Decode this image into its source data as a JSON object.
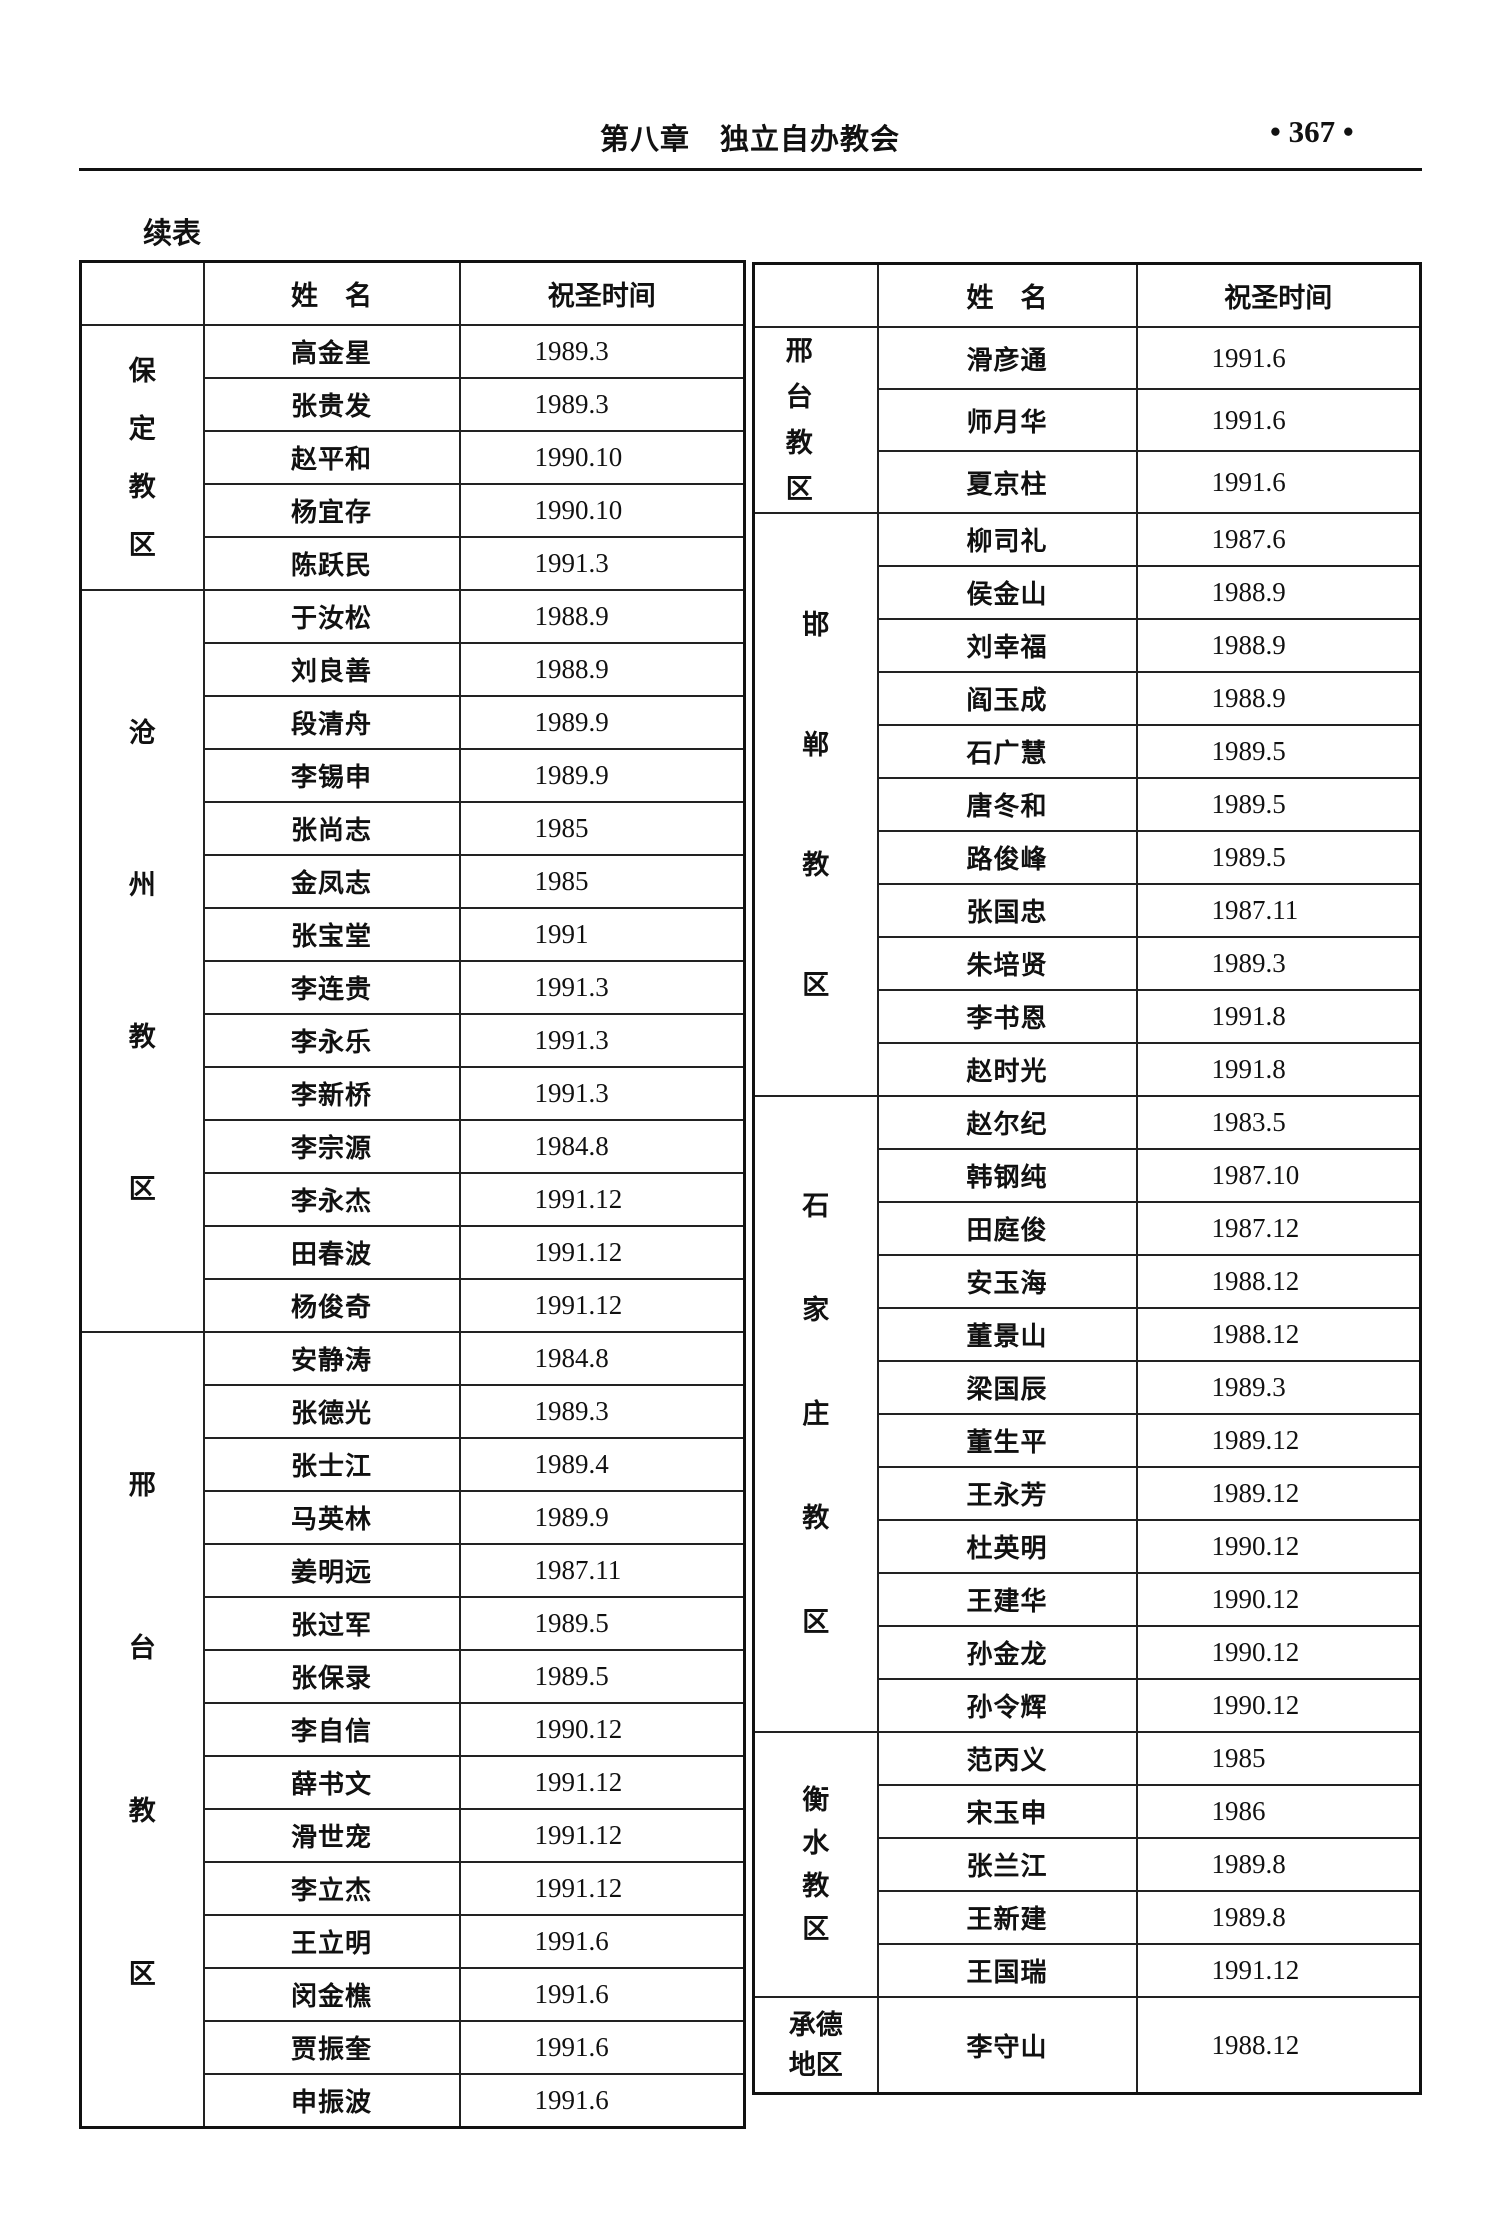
{
  "header": {
    "chapter": "第八章　独立自办教会",
    "page_number": "• 367 •"
  },
  "caption": "续表",
  "columns": {
    "region": "",
    "name": "姓　名",
    "date": "祝圣时间"
  },
  "left_table": [
    {
      "region": "保定教区",
      "layout": "stack",
      "rows": [
        [
          "高金星",
          "1989.3"
        ],
        [
          "张贵发",
          "1989.3"
        ],
        [
          "赵平和",
          "1990.10"
        ],
        [
          "杨宜存",
          "1990.10"
        ],
        [
          "陈跃民",
          "1991.3"
        ]
      ]
    },
    {
      "region": "沧州教区",
      "layout": "stack",
      "rows": [
        [
          "于汝松",
          "1988.9"
        ],
        [
          "刘良善",
          "1988.9"
        ],
        [
          "段清舟",
          "1989.9"
        ],
        [
          "李锡申",
          "1989.9"
        ],
        [
          "张尚志",
          "1985"
        ],
        [
          "金凤志",
          "1985"
        ],
        [
          "张宝堂",
          "1991"
        ],
        [
          "李连贵",
          "1991.3"
        ],
        [
          "李永乐",
          "1991.3"
        ],
        [
          "李新桥",
          "1991.3"
        ],
        [
          "李宗源",
          "1984.8"
        ],
        [
          "李永杰",
          "1991.12"
        ],
        [
          "田春波",
          "1991.12"
        ],
        [
          "杨俊奇",
          "1991.12"
        ]
      ]
    },
    {
      "region": "邢台教区",
      "layout": "stack",
      "rows": [
        [
          "安静涛",
          "1984.8"
        ],
        [
          "张德光",
          "1989.3"
        ],
        [
          "张士江",
          "1989.4"
        ],
        [
          "马英林",
          "1989.9"
        ],
        [
          "姜明远",
          "1987.11"
        ],
        [
          "张过军",
          "1989.5"
        ],
        [
          "张保录",
          "1989.5"
        ],
        [
          "李自信",
          "1990.12"
        ],
        [
          "薛书文",
          "1991.12"
        ],
        [
          "滑世宠",
          "1991.12"
        ],
        [
          "李立杰",
          "1991.12"
        ],
        [
          "王立明",
          "1991.6"
        ],
        [
          "闵金樵",
          "1991.6"
        ],
        [
          "贾振奎",
          "1991.6"
        ],
        [
          "申振波",
          "1991.6"
        ]
      ]
    }
  ],
  "right_table": [
    {
      "region": "邢台教区",
      "layout": "grid",
      "rows": [
        [
          "滑彦通",
          "1991.6"
        ],
        [
          "师月华",
          "1991.6"
        ],
        [
          "夏京柱",
          "1991.6"
        ]
      ]
    },
    {
      "region": "邯郸教区",
      "layout": "stack",
      "rows": [
        [
          "柳司礼",
          "1987.6"
        ],
        [
          "侯金山",
          "1988.9"
        ],
        [
          "刘幸福",
          "1988.9"
        ],
        [
          "阎玉成",
          "1988.9"
        ],
        [
          "石广慧",
          "1989.5"
        ],
        [
          "唐冬和",
          "1989.5"
        ],
        [
          "路俊峰",
          "1989.5"
        ],
        [
          "张国忠",
          "1987.11"
        ],
        [
          "朱培贤",
          "1989.3"
        ],
        [
          "李书恩",
          "1991.8"
        ],
        [
          "赵时光",
          "1991.8"
        ]
      ]
    },
    {
      "region": "石家庄教区",
      "layout": "stack",
      "rows": [
        [
          "赵尔纪",
          "1983.5"
        ],
        [
          "韩钢纯",
          "1987.10"
        ],
        [
          "田庭俊",
          "1987.12"
        ],
        [
          "安玉海",
          "1988.12"
        ],
        [
          "董景山",
          "1988.12"
        ],
        [
          "梁国辰",
          "1989.3"
        ],
        [
          "董生平",
          "1989.12"
        ],
        [
          "王永芳",
          "1989.12"
        ],
        [
          "杜英明",
          "1990.12"
        ],
        [
          "王建华",
          "1990.12"
        ],
        [
          "孙金龙",
          "1990.12"
        ],
        [
          "孙令辉",
          "1990.12"
        ]
      ]
    },
    {
      "region": "衡水教区",
      "layout": "tight",
      "rows": [
        [
          "范丙义",
          "1985"
        ],
        [
          "宋玉申",
          "1986"
        ],
        [
          "张兰江",
          "1989.8"
        ],
        [
          "王新建",
          "1989.8"
        ],
        [
          "王国瑞",
          "1991.12"
        ]
      ]
    },
    {
      "region": "承德地区",
      "layout": "two-line",
      "rows": [
        [
          "李守山",
          "1988.12"
        ]
      ]
    }
  ]
}
